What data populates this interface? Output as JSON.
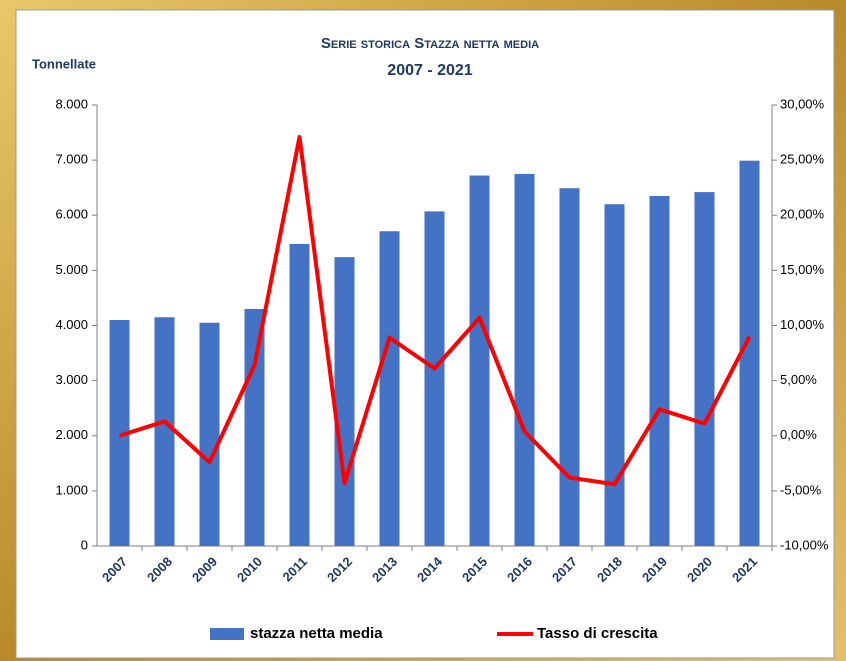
{
  "chart_data": {
    "type": "bar",
    "title": "Serie storica Stazza netta media",
    "subtitle": "2007 - 2021",
    "y_label": "Tonnellate",
    "categories": [
      "2007",
      "2008",
      "2009",
      "2010",
      "2011",
      "2012",
      "2013",
      "2014",
      "2015",
      "2016",
      "2017",
      "2018",
      "2019",
      "2020",
      "2021"
    ],
    "series": [
      {
        "name": "stazza netta media",
        "type": "bar",
        "color": "#4472c4",
        "values": [
          4100,
          4150,
          4050,
          4300,
          5480,
          5240,
          5710,
          6070,
          6720,
          6750,
          6490,
          6200,
          6350,
          6420,
          6990
        ]
      },
      {
        "name": "Tasso di crescita",
        "type": "line",
        "axis": "y2",
        "color": "#ff0000",
        "values": [
          0.0,
          1.3,
          -2.4,
          6.4,
          27.1,
          -4.3,
          8.9,
          6.1,
          10.7,
          0.4,
          -3.8,
          -4.4,
          2.4,
          1.1,
          9.0
        ]
      }
    ],
    "ylim": [
      0,
      8000
    ],
    "yticks": [
      0,
      {
        "value": 1000,
        "label": "1.000"
      },
      {
        "value": 2000,
        "label": "2.000"
      },
      {
        "value": 3000,
        "label": "3.000"
      },
      {
        "value": 4000,
        "label": "4.000"
      },
      {
        "value": 5000,
        "label": "5.000"
      },
      {
        "value": 6000,
        "label": "6.000"
      },
      {
        "value": 7000,
        "label": "7.000"
      },
      {
        "value": 8000,
        "label": "8.000"
      }
    ],
    "y2lim": [
      -10,
      30
    ],
    "y2ticks": [
      {
        "value": -10,
        "label": "-10,00%"
      },
      {
        "value": -5,
        "label": "-5,00%"
      },
      {
        "value": 0,
        "label": "0,00%"
      },
      {
        "value": 5,
        "label": "5,00%"
      },
      {
        "value": 10,
        "label": "10,00%"
      },
      {
        "value": 15,
        "label": "15,00%"
      },
      {
        "value": 20,
        "label": "20,00%"
      },
      {
        "value": 25,
        "label": "25,00%"
      },
      {
        "value": 30,
        "label": "30,00%"
      }
    ],
    "grid": false,
    "legend": "bottom"
  }
}
